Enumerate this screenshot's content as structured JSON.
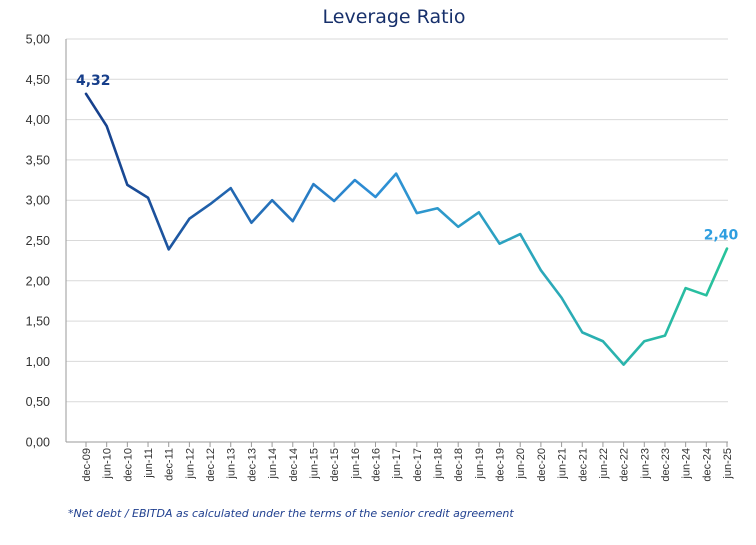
{
  "chart_data": {
    "type": "line",
    "title": "Leverage Ratio",
    "xlabel": "",
    "ylabel": "",
    "ylim": [
      0,
      5
    ],
    "yticks": [
      "0,00",
      "0,50",
      "1,00",
      "1,50",
      "2,00",
      "2,50",
      "3,00",
      "3,50",
      "4,00",
      "4,50",
      "5,00"
    ],
    "grid": true,
    "categories": [
      "dec-09",
      "jun-10",
      "dec-10",
      "jun-11",
      "dec-11",
      "jun-12",
      "dec-12",
      "jun-13",
      "dec-13",
      "jun-14",
      "dec-14",
      "jun-15",
      "dec-15",
      "jun-16",
      "dec-16",
      "jun-17",
      "dec-17",
      "jun-18",
      "dec-18",
      "jun-19",
      "dec-19",
      "jun-20",
      "dec-20",
      "jun-21",
      "dec-21",
      "jun-22",
      "dec-22",
      "jun-23",
      "dec-23",
      "jun-24",
      "dec-24",
      "jun-25"
    ],
    "series": [
      {
        "values": [
          4.32,
          3.92,
          3.19,
          3.03,
          2.39,
          2.77,
          2.95,
          3.15,
          2.72,
          3.0,
          2.74,
          3.2,
          2.99,
          3.25,
          3.04,
          3.33,
          2.84,
          2.9,
          2.67,
          2.85,
          2.46,
          2.58,
          2.13,
          1.79,
          1.36,
          1.25,
          0.96,
          1.25,
          1.32,
          1.91,
          1.82,
          2.4
        ],
        "colors": [
          "#163e8a",
          "#2e8fd6",
          "#28c39b"
        ]
      }
    ],
    "data_labels": [
      {
        "index": 0,
        "text": "4,32",
        "color": "#163e8a"
      },
      {
        "index": 31,
        "text": "2,40",
        "color": "#2e9ee0"
      }
    ]
  },
  "footnote": "*Net debt / EBITDA as calculated under the terms of the senior credit agreement"
}
